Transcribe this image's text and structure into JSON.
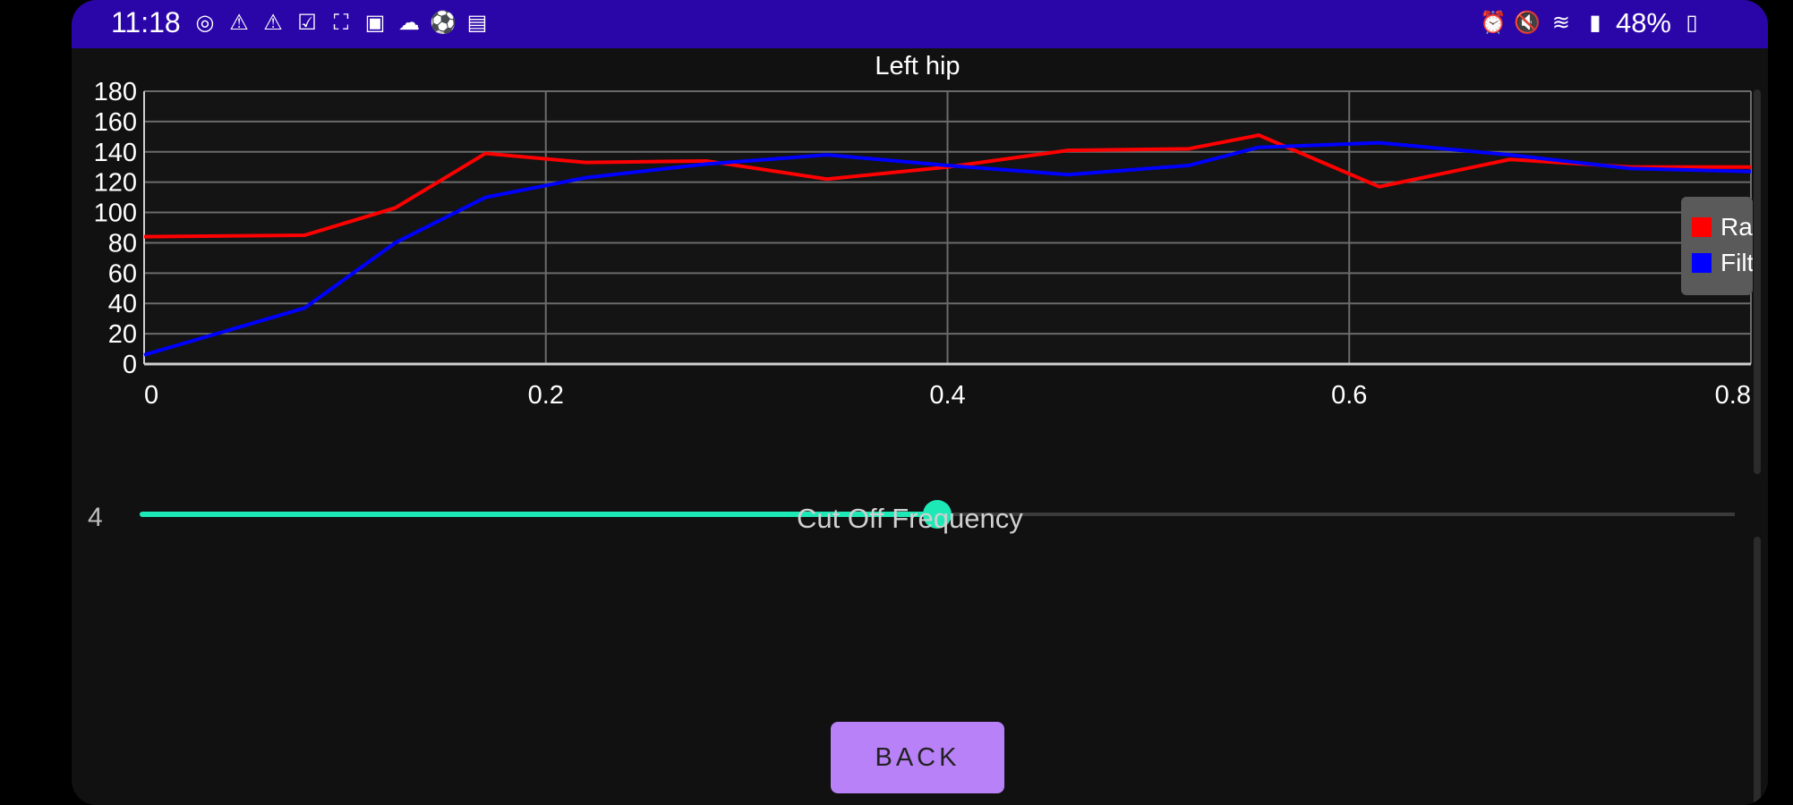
{
  "status_bar": {
    "time": "11:18",
    "left_icons": [
      "instagram-icon",
      "warning-icon",
      "warning-icon",
      "checkbox-icon",
      "fullscreen-icon",
      "image-icon",
      "cloud-icon",
      "soccer-ball-icon",
      "translate-icon"
    ],
    "right_icons": [
      "alarm-icon",
      "mute-icon",
      "wifi-icon",
      "signal-icon"
    ],
    "battery": "48%"
  },
  "chart_data": {
    "type": "line",
    "title": "Left hip",
    "xlim": [
      0,
      0.8
    ],
    "ylim": [
      0,
      180
    ],
    "x_ticks": [
      "0",
      "0.2",
      "0.4",
      "0.6",
      "0.8"
    ],
    "y_ticks": [
      "180",
      "160",
      "140",
      "120",
      "100",
      "80",
      "60",
      "40",
      "20",
      "0"
    ],
    "grid": true,
    "legend_position": "right",
    "series": [
      {
        "name": "Ra",
        "color": "#ff0000",
        "x": [
          0,
          0.08,
          0.125,
          0.17,
          0.22,
          0.28,
          0.34,
          0.4,
          0.46,
          0.52,
          0.555,
          0.615,
          0.68,
          0.74,
          0.8
        ],
        "y": [
          84,
          85,
          103,
          139,
          133,
          134,
          122,
          130,
          141,
          142,
          151,
          117,
          135,
          130,
          130
        ]
      },
      {
        "name": "Filt",
        "color": "#0000ff",
        "x": [
          0,
          0.08,
          0.125,
          0.17,
          0.22,
          0.28,
          0.34,
          0.4,
          0.46,
          0.52,
          0.555,
          0.615,
          0.68,
          0.74,
          0.8
        ],
        "y": [
          6,
          37,
          80,
          110,
          123,
          132,
          138,
          131,
          125,
          131,
          143,
          146,
          138,
          129,
          127
        ]
      }
    ]
  },
  "legend": {
    "items": [
      {
        "label": "Ra",
        "color": "#ff0000"
      },
      {
        "label": "Filt",
        "color": "#0000ff"
      }
    ]
  },
  "slider": {
    "value": "4",
    "label": "Cut Off Frequency",
    "fraction": 0.5,
    "accent": "#1de9b6"
  },
  "buttons": {
    "back_label": "BACK",
    "back_color": "#b981f7"
  }
}
